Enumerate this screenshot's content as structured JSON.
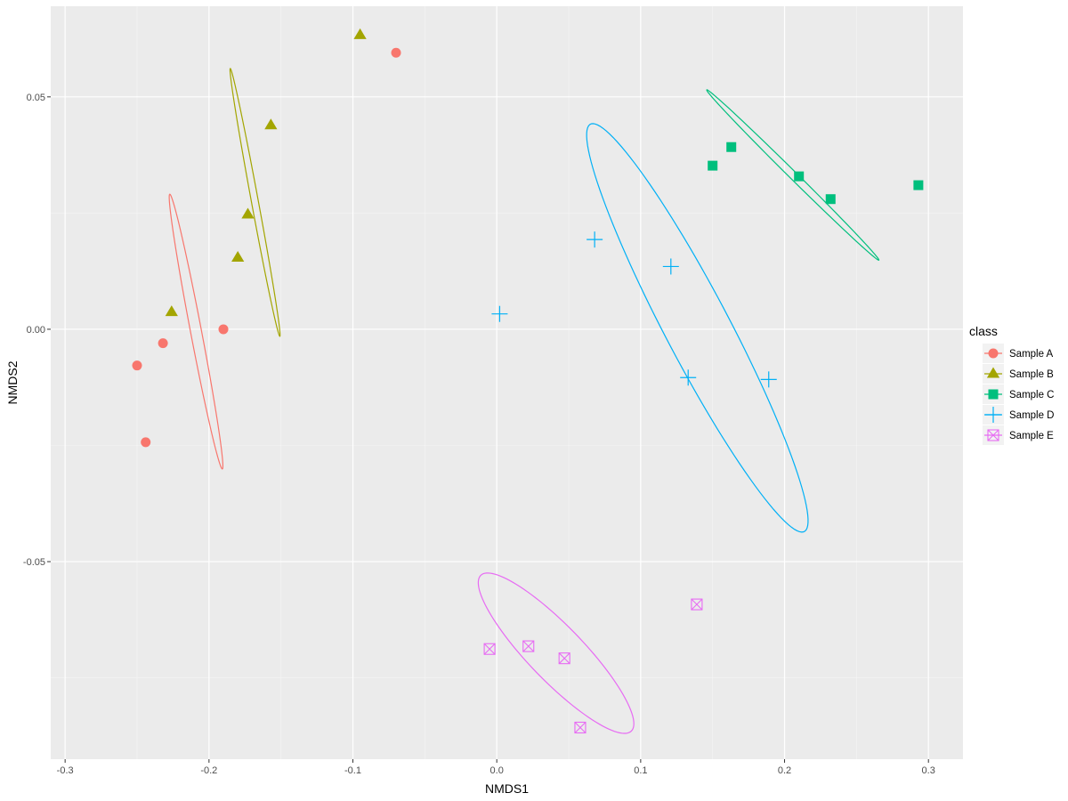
{
  "chart_data": {
    "type": "scatter",
    "xlabel": "NMDS1",
    "ylabel": "NMDS2",
    "xlim": [
      -0.31,
      0.324
    ],
    "ylim": [
      -0.0925,
      0.0695
    ],
    "x_ticks": [
      -0.3,
      -0.2,
      -0.1,
      0.0,
      0.1,
      0.2,
      0.3
    ],
    "x_tick_labels": [
      "-0.3",
      "-0.2",
      "-0.1",
      "0.0",
      "0.1",
      "0.2",
      "0.3"
    ],
    "y_ticks": [
      -0.05,
      0.0,
      0.05
    ],
    "y_tick_labels": [
      "-0.05",
      "0.00",
      "0.05"
    ],
    "grid": true,
    "legend": {
      "title": "class",
      "position": "right"
    },
    "series": [
      {
        "name": "Sample A",
        "color": "#F8766D",
        "marker": "circle",
        "points": [
          [
            -0.07,
            0.0595
          ],
          [
            -0.19,
            0.0
          ],
          [
            -0.232,
            -0.003
          ],
          [
            -0.25,
            -0.0078
          ],
          [
            -0.244,
            -0.0243
          ]
        ],
        "ellipse": {
          "cx": -0.209,
          "cy": -0.0005,
          "rx": 0.0348,
          "ry": 0.0033,
          "angle_deg": 122
        }
      },
      {
        "name": "Sample B",
        "color": "#A3A500",
        "marker": "triangle",
        "points": [
          [
            -0.095,
            0.0633
          ],
          [
            -0.157,
            0.0439
          ],
          [
            -0.173,
            0.0247
          ],
          [
            -0.18,
            0.0154
          ],
          [
            -0.226,
            0.0037
          ]
        ],
        "ellipse": {
          "cx": -0.168,
          "cy": 0.0273,
          "rx": 0.0336,
          "ry": 0.0021,
          "angle_deg": 121
        }
      },
      {
        "name": "Sample C",
        "color": "#00BF7D",
        "marker": "square",
        "points": [
          [
            0.163,
            0.0392
          ],
          [
            0.15,
            0.0352
          ],
          [
            0.21,
            0.0329
          ],
          [
            0.232,
            0.028
          ],
          [
            0.293,
            0.031
          ]
        ],
        "ellipse": {
          "cx": 0.2057,
          "cy": 0.0332,
          "rx": 0.0626,
          "ry": 0.0011,
          "angle_deg": 163
        }
      },
      {
        "name": "Sample D",
        "color": "#00B0F6",
        "marker": "plus",
        "points": [
          [
            0.068,
            0.0193
          ],
          [
            0.121,
            0.0135
          ],
          [
            0.002,
            0.0033
          ],
          [
            0.133,
            -0.0104
          ],
          [
            0.189,
            -0.0108
          ]
        ],
        "ellipse": {
          "cx": 0.1394,
          "cy": 0.0003,
          "rx": 0.0877,
          "ry": 0.0127,
          "angle_deg": 151
        }
      },
      {
        "name": "Sample E",
        "color": "#E76BF3",
        "marker": "square-x",
        "points": [
          [
            0.139,
            -0.0592
          ],
          [
            -0.005,
            -0.0688
          ],
          [
            0.022,
            -0.0682
          ],
          [
            0.047,
            -0.0708
          ],
          [
            0.058,
            -0.0857
          ]
        ],
        "ellipse": {
          "cx": 0.0412,
          "cy": -0.0697,
          "rx": 0.0562,
          "ry": 0.0079,
          "angle_deg": 164
        }
      }
    ]
  }
}
